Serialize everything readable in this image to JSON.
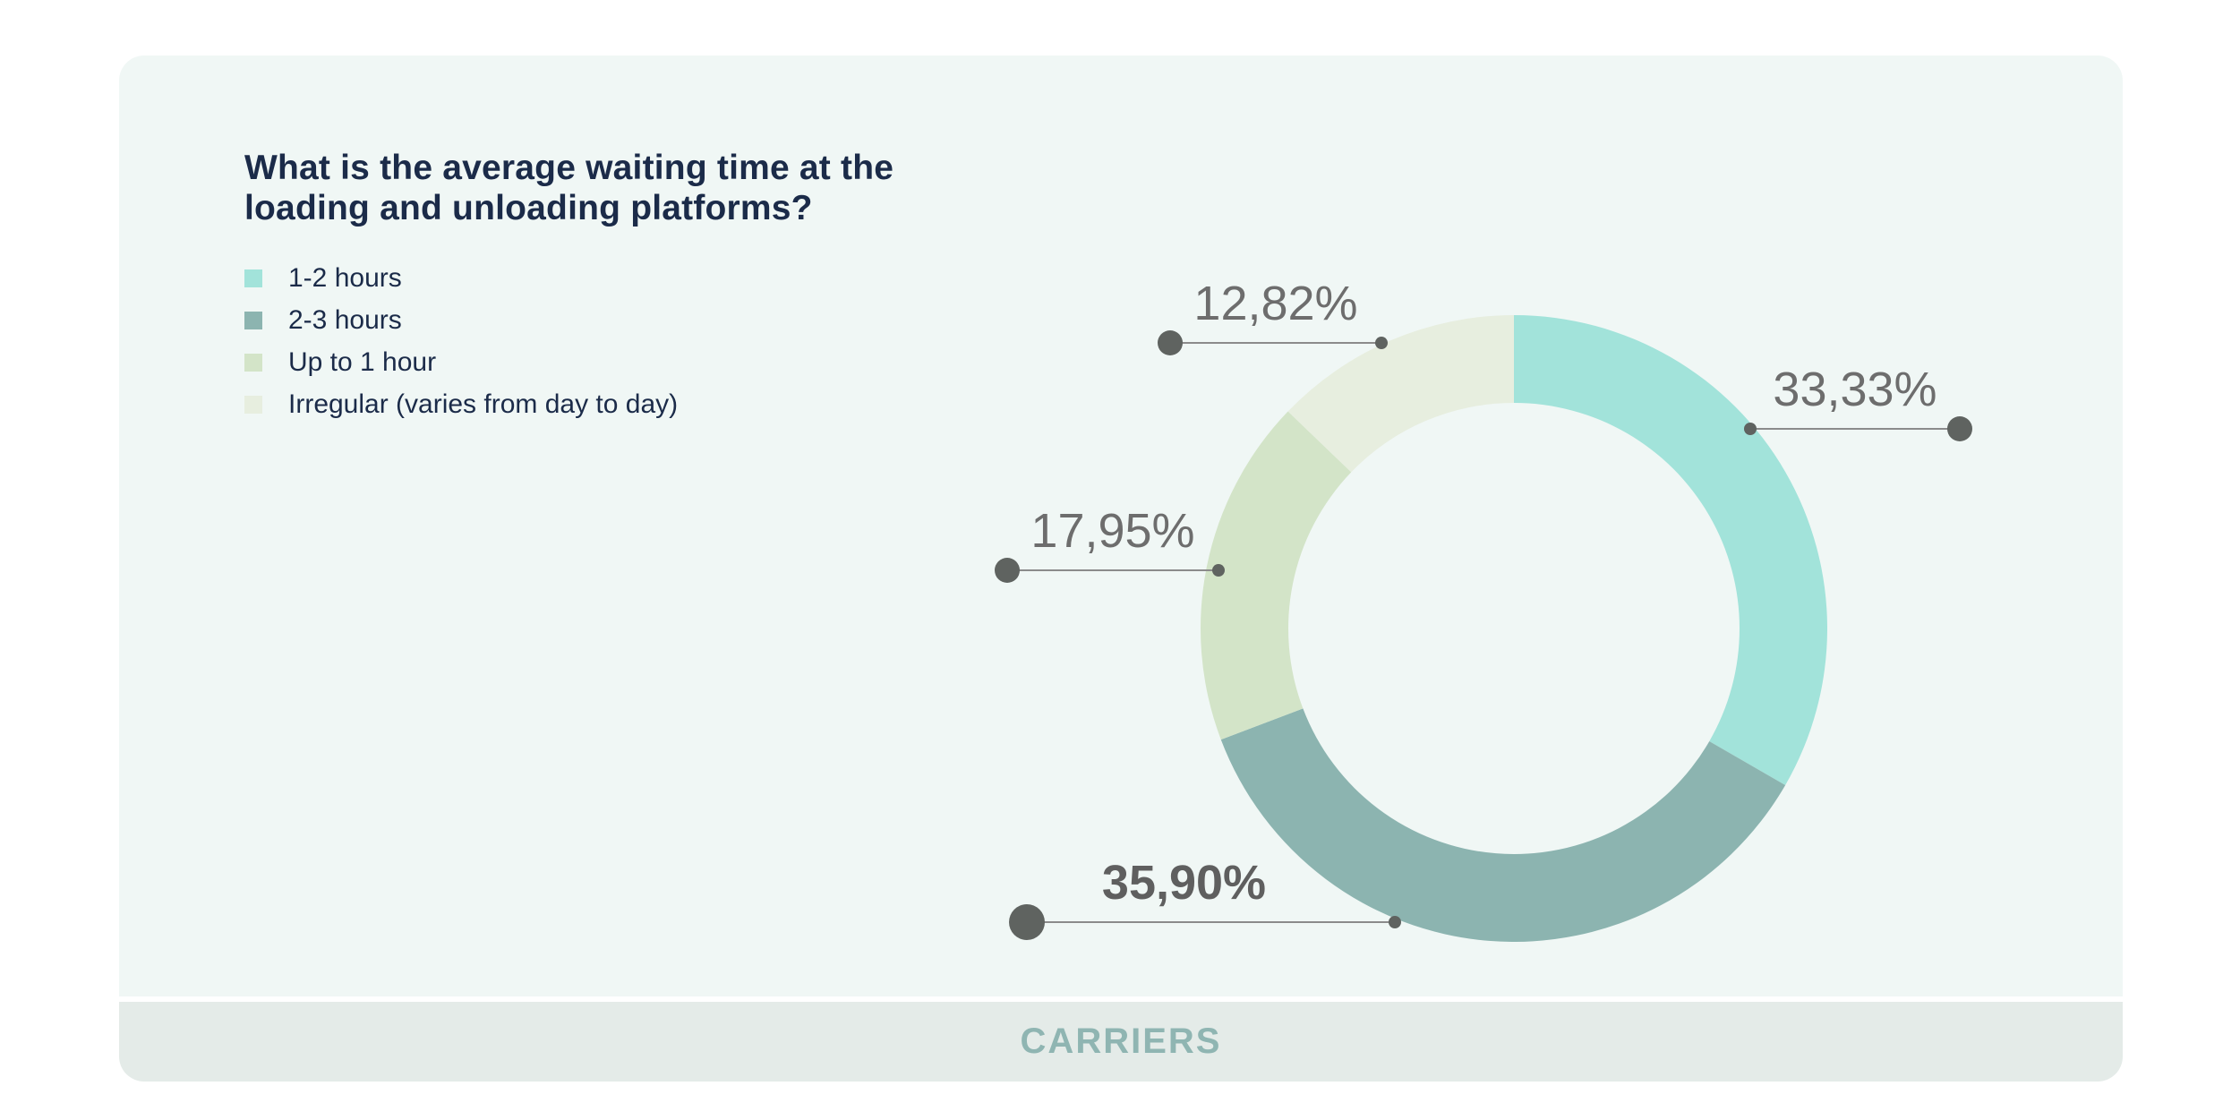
{
  "card": {
    "title_lines": [
      "What is the average waiting time at the",
      "loading and unloading platforms?"
    ],
    "footer": {
      "label": "CARRIERS"
    }
  },
  "legend": {
    "items": [
      {
        "name": "1-2 hours",
        "color": "#a2e3da"
      },
      {
        "name": "2-3 hours",
        "color": "#8cb4b0"
      },
      {
        "name": "Up to 1 hour",
        "color": "#d3e4c8"
      },
      {
        "name": "Irregular (varies from day to day)",
        "color": "#e7eedf"
      }
    ]
  },
  "chart_data": {
    "type": "pie",
    "subtype": "donut",
    "title": "What is the average waiting time at the loading and unloading platforms?",
    "unit": "%",
    "decimal_separator": ",",
    "start_angle_deg": 0,
    "direction": "clockwise",
    "hole_ratio": 0.72,
    "legend_position": "top-left",
    "labels": "outside-with-leader-lines",
    "series": [
      {
        "name": "1-2 hours",
        "value": 33.33,
        "display_value": "33,33%",
        "color": "#a2e3da",
        "label_emphasis": false
      },
      {
        "name": "2-3 hours",
        "value": 35.9,
        "display_value": "35,90%",
        "color": "#8cb4b0",
        "label_emphasis": true
      },
      {
        "name": "Up to 1 hour",
        "value": 17.95,
        "display_value": "17,95%",
        "color": "#d3e4c8",
        "label_emphasis": false
      },
      {
        "name": "Irregular (varies from day to day)",
        "value": 12.82,
        "display_value": "12,82%",
        "color": "#e7eedf",
        "label_emphasis": false
      }
    ]
  },
  "colors": {
    "title_text": "#1b2b49",
    "label_text": "#6d6d6d",
    "leader_line": "#8b8b8b",
    "leader_dot": "#5f6360",
    "footer_text": "#8fb5b2",
    "footer_background": "#e4ebe8",
    "card_background": "#f0f7f5"
  }
}
